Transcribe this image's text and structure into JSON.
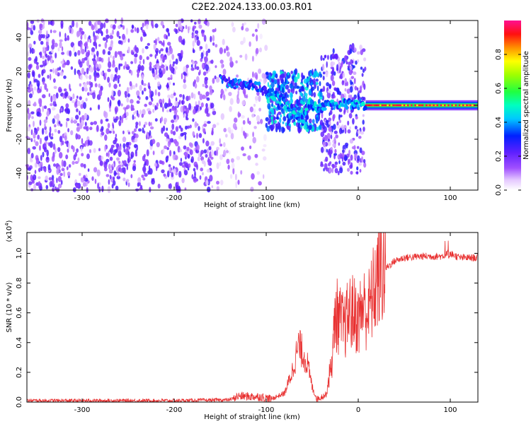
{
  "title": "C2E2.2024.133.00.03.R01",
  "colors": {
    "snr_line": "#e83030",
    "frame": "#000000",
    "background": "#ffffff"
  },
  "chart_data": [
    {
      "type": "heatmap",
      "xlabel": "Height of straight line (km)",
      "ylabel": "Frequency (Hz)",
      "xlim": [
        -360,
        130
      ],
      "ylim": [
        -50,
        50
      ],
      "x_ticks": [
        -300,
        -200,
        -100,
        0,
        100
      ],
      "y_ticks": [
        -40,
        -20,
        0,
        20,
        40
      ],
      "grid": false,
      "colorbar": {
        "label": "Normalized spectral amplitude",
        "range": [
          0,
          1
        ],
        "ticks": [
          0.0,
          0.2,
          0.4,
          0.6,
          0.8
        ],
        "colormap": "rainbow (white → violet → blue → cyan → green → yellow → red → magenta)"
      },
      "regions": [
        {
          "x_range": [
            -360,
            -155
          ],
          "freq_range": [
            -50,
            50
          ],
          "amplitude": [
            0.05,
            0.25
          ],
          "pattern": "broadband noise"
        },
        {
          "x_range": [
            -155,
            -100
          ],
          "freq_range": [
            -50,
            50
          ],
          "amplitude": [
            0.02,
            0.15
          ],
          "pattern": "sparse noise"
        },
        {
          "x_range": [
            -100,
            -40
          ],
          "freq_range": [
            -15,
            20
          ],
          "amplitude": [
            0.2,
            0.5
          ],
          "pattern": "descending tone"
        },
        {
          "x_range": [
            -40,
            8
          ],
          "freq_range": [
            -40,
            35
          ],
          "amplitude": [
            0.05,
            0.3
          ],
          "pattern": "noise with tone near 0 Hz"
        },
        {
          "x_range": [
            8,
            130
          ],
          "freq_range": [
            -3,
            3
          ],
          "amplitude": [
            0.8,
            1.0
          ],
          "pattern": "carrier line at 0 Hz"
        }
      ],
      "tone_track": [
        {
          "x": -150,
          "f": 15
        },
        {
          "x": -130,
          "f": 12
        },
        {
          "x": -110,
          "f": 11
        },
        {
          "x": -100,
          "f": 8
        },
        {
          "x": -90,
          "f": 6
        },
        {
          "x": -80,
          "f": 1
        },
        {
          "x": -70,
          "f": -4
        },
        {
          "x": -60,
          "f": -9
        },
        {
          "x": -55,
          "f": 2
        },
        {
          "x": -45,
          "f": -2
        },
        {
          "x": -35,
          "f": 0
        },
        {
          "x": -20,
          "f": 1
        },
        {
          "x": -5,
          "f": 1
        },
        {
          "x": 8,
          "f": 0
        },
        {
          "x": 130,
          "f": 0
        }
      ]
    },
    {
      "type": "line",
      "xlabel": "Height of straight line (km)",
      "ylabel": "SNR (10 * v/v)",
      "y_scale_label": "(x10",
      "y_scale_exponent": "4",
      "y_scale_close": ")",
      "xlim": [
        -360,
        130
      ],
      "ylim": [
        0,
        1.14
      ],
      "x_ticks": [
        -300,
        -200,
        -100,
        0,
        100
      ],
      "y_ticks": [
        0.0,
        0.2,
        0.4,
        0.6,
        0.8,
        1.0
      ],
      "grid": false,
      "series": [
        {
          "points": [
            {
              "x": -360,
              "y": 0.01
            },
            {
              "x": -200,
              "y": 0.01
            },
            {
              "x": -140,
              "y": 0.015
            },
            {
              "x": -130,
              "y": 0.04
            },
            {
              "x": -105,
              "y": 0.035
            },
            {
              "x": -95,
              "y": 0.02
            },
            {
              "x": -80,
              "y": 0.06
            },
            {
              "x": -72,
              "y": 0.2
            },
            {
              "x": -65,
              "y": 0.38
            },
            {
              "x": -60,
              "y": 0.33
            },
            {
              "x": -55,
              "y": 0.25
            },
            {
              "x": -50,
              "y": 0.1
            },
            {
              "x": -45,
              "y": 0.02
            },
            {
              "x": -35,
              "y": 0.05
            },
            {
              "x": -28,
              "y": 0.3
            },
            {
              "x": -25,
              "y": 0.6
            },
            {
              "x": -20,
              "y": 0.55
            },
            {
              "x": -15,
              "y": 0.5
            },
            {
              "x": -10,
              "y": 0.6
            },
            {
              "x": -5,
              "y": 0.6
            },
            {
              "x": 0,
              "y": 0.55
            },
            {
              "x": 5,
              "y": 0.65
            },
            {
              "x": 10,
              "y": 0.6
            },
            {
              "x": 15,
              "y": 0.7
            },
            {
              "x": 20,
              "y": 0.82
            },
            {
              "x": 25,
              "y": 0.88
            },
            {
              "x": 30,
              "y": 0.9
            },
            {
              "x": 40,
              "y": 0.95
            },
            {
              "x": 50,
              "y": 0.97
            },
            {
              "x": 70,
              "y": 0.98
            },
            {
              "x": 90,
              "y": 0.98
            },
            {
              "x": 100,
              "y": 1.0
            },
            {
              "x": 110,
              "y": 0.97
            },
            {
              "x": 130,
              "y": 0.97
            }
          ]
        }
      ]
    }
  ]
}
